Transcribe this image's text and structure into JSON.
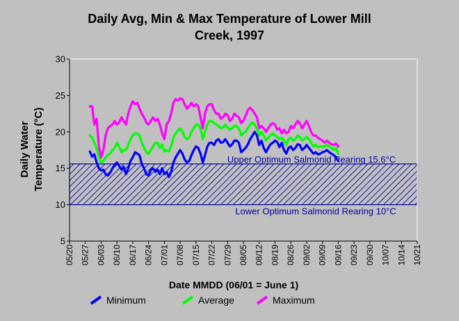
{
  "chart_data": {
    "type": "line",
    "title": "Daily Avg, Min & Max Temperature of Lower Mill Creek, 1997",
    "title_lines": [
      "Daily Avg, Min & Max Temperature of Lower Mill",
      "Creek, 1997"
    ],
    "xlabel": "Date MMDD (06/01 = June 1)",
    "ylabel_lines": [
      "Daily Water",
      "Temperature (°C)"
    ],
    "ylim": [
      5,
      30
    ],
    "yticks": [
      5,
      10,
      15,
      20,
      25,
      30
    ],
    "xlim_day": [
      -12,
      142
    ],
    "xtick_days": [
      -12,
      -5,
      2,
      9,
      16,
      23,
      30,
      37,
      44,
      51,
      58,
      65,
      72,
      79,
      86,
      93,
      100,
      107,
      114,
      121,
      128,
      135,
      142
    ],
    "xtick_labels": [
      "05/20",
      "05/27",
      "06/03",
      "06/10",
      "06/17",
      "06/24",
      "07/01",
      "07/08",
      "07/15",
      "07/22",
      "07/29",
      "08/05",
      "08/12",
      "08/19",
      "08/26",
      "09/02",
      "09/09",
      "09/16",
      "09/23",
      "09/30",
      "10/07",
      "10/14",
      "10/21"
    ],
    "grid": false,
    "legend_position": "bottom",
    "band": {
      "upper": 15.6,
      "lower": 10,
      "upper_label": "Upper Optimum Salmonid Rearing 15.6°C",
      "lower_label": "Lower Optimum Salmonid Rearing 10°C",
      "color": "#0000a0"
    },
    "series": [
      {
        "name": "Minimum",
        "color": "#0000ff",
        "days": [
          -3,
          -2,
          -1,
          0,
          1,
          2,
          3,
          4,
          5,
          6,
          7,
          8,
          9,
          10,
          11,
          12,
          13,
          14,
          15,
          16,
          17,
          18,
          19,
          20,
          21,
          22,
          23,
          24,
          25,
          26,
          27,
          28,
          29,
          30,
          31,
          32,
          33,
          34,
          35,
          36,
          37,
          38,
          39,
          40,
          41,
          42,
          43,
          44,
          45,
          46,
          47,
          48,
          49,
          50,
          51,
          52,
          53,
          54,
          55,
          56,
          57,
          58,
          59,
          60,
          61,
          62,
          63,
          64,
          65,
          66,
          67,
          68,
          69,
          70,
          71,
          72,
          73,
          74,
          75,
          76,
          77,
          78,
          79,
          80,
          81,
          82,
          83,
          84,
          85,
          86,
          87,
          88,
          89,
          90,
          91,
          92,
          93,
          94,
          95,
          96,
          97,
          98,
          99,
          100,
          101,
          102,
          103,
          104,
          105,
          106,
          107
        ],
        "values": [
          17.3,
          16.6,
          16.9,
          15.8,
          15.0,
          14.7,
          14.8,
          14.2,
          14.0,
          14.4,
          15.0,
          15.5,
          15.8,
          15.3,
          14.8,
          15.2,
          14.2,
          15.0,
          16.0,
          16.5,
          17.2,
          17.0,
          16.8,
          15.6,
          15.0,
          14.2,
          14.0,
          14.8,
          15.0,
          14.5,
          14.8,
          14.2,
          15.0,
          14.2,
          14.5,
          13.8,
          14.5,
          15.8,
          16.5,
          17.0,
          17.5,
          17.0,
          16.2,
          15.8,
          16.0,
          16.8,
          17.5,
          18.0,
          17.8,
          17.0,
          15.8,
          16.8,
          18.0,
          18.5,
          18.5,
          18.2,
          18.8,
          19.0,
          18.5,
          18.6,
          19.0,
          18.5,
          18.0,
          18.3,
          18.8,
          18.8,
          18.5,
          17.2,
          17.5,
          17.8,
          18.3,
          19.0,
          19.5,
          20.0,
          19.5,
          18.2,
          18.8,
          17.8,
          17.2,
          17.8,
          18.3,
          18.5,
          18.8,
          18.6,
          17.9,
          18.5,
          17.5,
          17.0,
          17.8,
          18.0,
          17.5,
          17.8,
          18.3,
          18.2,
          17.5,
          17.8,
          18.2,
          17.8,
          17.4,
          17.0,
          17.2,
          16.9,
          17.0,
          17.2,
          17.3,
          17.5,
          17.2,
          17.0,
          16.8,
          16.5,
          16.0
        ]
      },
      {
        "name": "Average",
        "color": "#00ff00",
        "days": [
          -3,
          -2,
          -1,
          0,
          1,
          2,
          3,
          4,
          5,
          6,
          7,
          8,
          9,
          10,
          11,
          12,
          13,
          14,
          15,
          16,
          17,
          18,
          19,
          20,
          21,
          22,
          23,
          24,
          25,
          26,
          27,
          28,
          29,
          30,
          31,
          32,
          33,
          34,
          35,
          36,
          37,
          38,
          39,
          40,
          41,
          42,
          43,
          44,
          45,
          46,
          47,
          48,
          49,
          50,
          51,
          52,
          53,
          54,
          55,
          56,
          57,
          58,
          59,
          60,
          61,
          62,
          63,
          64,
          65,
          66,
          67,
          68,
          69,
          70,
          71,
          72,
          73,
          74,
          75,
          76,
          77,
          78,
          79,
          80,
          81,
          82,
          83,
          84,
          85,
          86,
          87,
          88,
          89,
          90,
          91,
          92,
          93,
          94,
          95,
          96,
          97,
          98,
          99,
          100,
          101,
          102,
          103,
          104,
          105,
          106,
          107
        ],
        "values": [
          19.5,
          19.2,
          18.5,
          17.8,
          16.5,
          15.8,
          16.0,
          16.5,
          16.8,
          17.0,
          17.5,
          17.8,
          18.5,
          18.0,
          17.2,
          17.5,
          17.5,
          18.2,
          19.0,
          19.5,
          19.8,
          19.8,
          19.5,
          18.5,
          17.8,
          17.2,
          17.0,
          17.5,
          18.0,
          18.5,
          18.5,
          17.8,
          18.3,
          17.3,
          17.5,
          17.3,
          18.0,
          19.2,
          19.8,
          20.2,
          20.5,
          20.0,
          19.3,
          19.0,
          19.2,
          20.0,
          20.5,
          21.0,
          21.0,
          20.5,
          19.0,
          20.0,
          21.0,
          21.5,
          21.5,
          21.2,
          21.0,
          20.8,
          20.5,
          20.6,
          21.0,
          20.6,
          20.3,
          20.5,
          20.8,
          20.8,
          20.5,
          19.5,
          19.8,
          20.0,
          20.5,
          21.0,
          21.3,
          21.0,
          20.5,
          19.5,
          20.0,
          19.5,
          18.8,
          19.2,
          19.5,
          19.8,
          19.5,
          19.3,
          19.0,
          19.2,
          18.8,
          18.2,
          19.0,
          19.2,
          18.8,
          19.0,
          19.5,
          19.3,
          18.8,
          19.0,
          19.3,
          19.0,
          18.5,
          18.0,
          18.2,
          17.9,
          18.0,
          18.0,
          18.0,
          18.2,
          18.0,
          17.8,
          17.5,
          17.8,
          17.0
        ]
      },
      {
        "name": "Maximum",
        "color": "#ff00ff",
        "days": [
          -3,
          -2,
          -1,
          0,
          1,
          2,
          3,
          4,
          5,
          6,
          7,
          8,
          9,
          10,
          11,
          12,
          13,
          14,
          15,
          16,
          17,
          18,
          19,
          20,
          21,
          22,
          23,
          24,
          25,
          26,
          27,
          28,
          29,
          30,
          31,
          32,
          33,
          34,
          35,
          36,
          37,
          38,
          39,
          40,
          41,
          42,
          43,
          44,
          45,
          46,
          47,
          48,
          49,
          50,
          51,
          52,
          53,
          54,
          55,
          56,
          57,
          58,
          59,
          60,
          61,
          62,
          63,
          64,
          65,
          66,
          67,
          68,
          69,
          70,
          71,
          72,
          73,
          74,
          75,
          76,
          77,
          78,
          79,
          80,
          81,
          82,
          83,
          84,
          85,
          86,
          87,
          88,
          89,
          90,
          91,
          92,
          93,
          94,
          95,
          96,
          97,
          98,
          99,
          100,
          101,
          102,
          103,
          104,
          105,
          106,
          107
        ],
        "values": [
          23.5,
          23.5,
          21.0,
          21.8,
          18.0,
          16.5,
          17.5,
          19.5,
          20.5,
          20.8,
          21.0,
          21.5,
          21.0,
          21.3,
          22.0,
          21.5,
          21.0,
          22.5,
          23.5,
          24.2,
          23.8,
          24.0,
          23.2,
          22.5,
          22.0,
          21.3,
          21.0,
          21.5,
          22.0,
          21.5,
          21.8,
          21.0,
          19.8,
          19.0,
          21.0,
          21.5,
          22.5,
          24.0,
          24.5,
          24.3,
          24.6,
          24.5,
          23.8,
          23.2,
          23.5,
          24.0,
          23.5,
          23.8,
          23.5,
          22.0,
          20.5,
          22.5,
          23.5,
          23.8,
          23.8,
          23.0,
          22.5,
          22.5,
          21.8,
          22.0,
          22.5,
          22.3,
          21.5,
          21.8,
          22.5,
          22.2,
          22.0,
          21.2,
          21.5,
          22.2,
          23.0,
          23.3,
          23.0,
          22.5,
          22.0,
          20.5,
          20.8,
          20.5,
          20.0,
          20.5,
          21.0,
          21.2,
          21.0,
          20.3,
          20.5,
          19.8,
          20.3,
          19.8,
          20.0,
          20.8,
          20.5,
          21.0,
          21.5,
          21.2,
          20.5,
          21.0,
          21.5,
          20.8,
          20.0,
          19.5,
          19.5,
          19.2,
          19.0,
          18.8,
          18.5,
          18.8,
          18.5,
          18.3,
          18.2,
          18.4,
          18.0
        ]
      }
    ]
  }
}
